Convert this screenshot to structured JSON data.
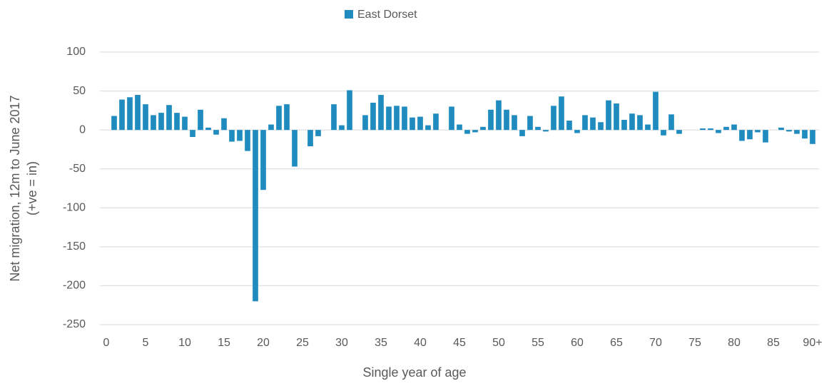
{
  "chart_data": {
    "type": "bar",
    "legend": "East Dorset",
    "color": "#1f8bbf",
    "xlabel": "Single year of age",
    "ylabel": [
      "Net migration, 12m to June 2017",
      "(+ve = in)"
    ],
    "categories": [
      "0",
      null,
      null,
      null,
      null,
      "5",
      null,
      null,
      null,
      null,
      "10",
      null,
      null,
      null,
      null,
      "15",
      null,
      null,
      null,
      null,
      "20",
      null,
      null,
      null,
      null,
      "25",
      null,
      null,
      null,
      null,
      "30",
      null,
      null,
      null,
      null,
      "35",
      null,
      null,
      null,
      null,
      "40",
      null,
      null,
      null,
      null,
      "45",
      null,
      null,
      null,
      null,
      "50",
      null,
      null,
      null,
      null,
      "55",
      null,
      null,
      null,
      null,
      "60",
      null,
      null,
      null,
      null,
      "65",
      null,
      null,
      null,
      null,
      "70",
      null,
      null,
      null,
      null,
      "75",
      null,
      null,
      null,
      null,
      "80",
      null,
      null,
      null,
      null,
      "85",
      null,
      null,
      null,
      null,
      "90+"
    ],
    "values": [
      0,
      18,
      39,
      42,
      45,
      33,
      19,
      22,
      32,
      22,
      17,
      -9,
      26,
      3,
      -6,
      15,
      -15,
      -14,
      -27,
      -220,
      -77,
      7,
      31,
      33,
      -47,
      0,
      -21,
      -8,
      0,
      33,
      6,
      51,
      0,
      19,
      35,
      45,
      30,
      31,
      30,
      16,
      17,
      6,
      21,
      0,
      30,
      7,
      -5,
      -3,
      4,
      26,
      38,
      26,
      19,
      -8,
      18,
      4,
      -2,
      31,
      43,
      12,
      -4,
      19,
      16,
      10,
      38,
      34,
      13,
      21,
      19,
      7,
      49,
      -7,
      20,
      -5,
      0,
      0,
      2,
      2,
      -4,
      4,
      7,
      -14,
      -12,
      -3,
      -16,
      0,
      3,
      -2,
      -5,
      -11,
      -18
    ],
    "ylim": [
      -250,
      100
    ],
    "yticks": [
      -250,
      -200,
      -150,
      -100,
      -50,
      0,
      50,
      100
    ],
    "grid": true
  }
}
